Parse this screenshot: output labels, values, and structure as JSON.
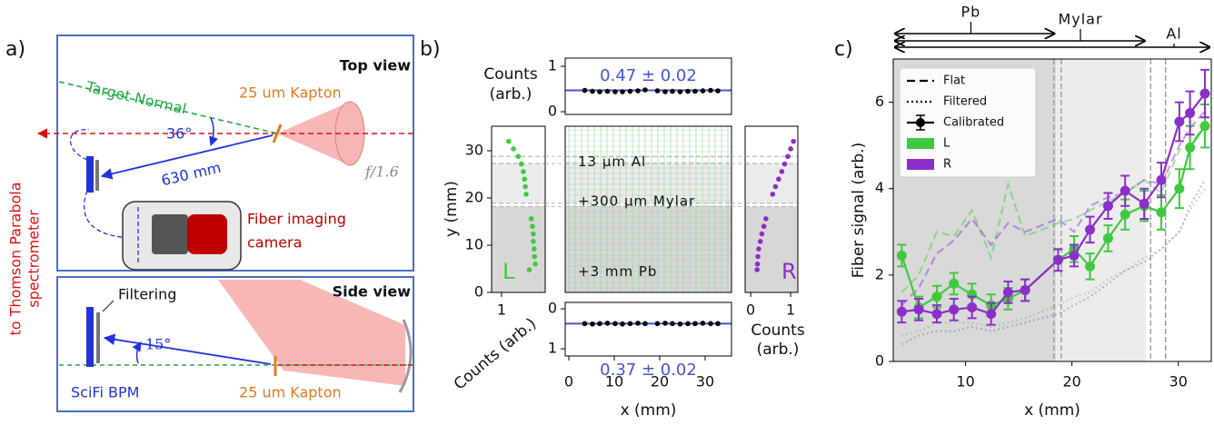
{
  "panel_a": {
    "label": "a)",
    "top_view": {
      "title": "Top view",
      "target_normal": "Target Normal",
      "kapton": "25 um Kapton",
      "angle": "36°",
      "distance": "630 mm",
      "f_number": "f/1.6",
      "camera": [
        "Fiber imaging",
        "camera"
      ],
      "spectrometer": [
        "to Thomson Parabola",
        "spectrometer"
      ]
    },
    "side_view": {
      "title": "Side view",
      "filtering": "Filtering",
      "angle": "15°",
      "detector": "SciFi BPM",
      "kapton": "25 um Kapton"
    }
  },
  "chart_data": [
    {
      "type": "scatter",
      "ylabel": [
        "Counts",
        "(arb.)"
      ],
      "color": "#000000",
      "mean_color": "#4455cc",
      "x": [
        3.5,
        5.2,
        6.8,
        8.5,
        10.2,
        11.8,
        13.5,
        15.2,
        16.8,
        19.5,
        21.2,
        22.8,
        24.5,
        26.2,
        27.8,
        29.5,
        31.2,
        32.8
      ],
      "values": [
        0.47,
        0.45,
        0.44,
        0.45,
        0.44,
        0.44,
        0.45,
        0.46,
        0.48,
        0.46,
        0.44,
        0.45,
        0.44,
        0.45,
        0.45,
        0.46,
        0.47,
        0.46
      ],
      "mean": 0.47,
      "annotation": "0.47 ± 0.02",
      "xlim": [
        -0.8,
        35.8
      ],
      "ylim": [
        -0.06,
        1.18
      ],
      "yticks": [
        0,
        1
      ]
    },
    {
      "type": "image",
      "label": "b)",
      "layers": [
        "13 μm Al",
        "+300 μm Mylar",
        "+3 mm Pb"
      ],
      "boundaries": [
        28.8,
        27.3,
        18.9,
        18.2
      ],
      "xlim": [
        -0.8,
        35.8
      ],
      "ylim": [
        0,
        35.2
      ]
    },
    {
      "type": "scatter",
      "name": "L",
      "color": "#3fc93f",
      "ylabel": "y (mm)",
      "xlabel": "Counts (arb.)",
      "y": [
        32,
        30.4,
        28.8,
        27.2,
        25.6,
        24,
        22.4,
        20.8,
        15.6,
        14,
        12.4,
        10.8,
        9.2,
        7.6,
        6,
        4.8
      ],
      "values": [
        0.82,
        0.7,
        0.58,
        0.5,
        0.45,
        0.42,
        0.4,
        0.38,
        0.25,
        0.22,
        0.2,
        0.2,
        0.18,
        0.17,
        0.15,
        0.3
      ],
      "xlim": [
        1.25,
        -0.1
      ],
      "xticks": [
        1
      ],
      "ylim": [
        0,
        35.2
      ],
      "yticks": [
        0,
        10,
        20,
        30
      ]
    },
    {
      "type": "scatter",
      "name": "R",
      "color": "#8b2fc9",
      "xlabel": [
        "Counts",
        "(arb.)"
      ],
      "y": [
        32,
        30.4,
        28.8,
        27.2,
        25.6,
        24,
        22.4,
        20.8,
        15.6,
        14,
        12.4,
        10.8,
        9.2,
        7.6,
        6,
        4.8
      ],
      "values": [
        1.07,
        1.0,
        0.93,
        0.85,
        0.78,
        0.7,
        0.62,
        0.55,
        0.38,
        0.33,
        0.28,
        0.24,
        0.2,
        0.18,
        0.17,
        0.16
      ],
      "xlim": [
        -0.14,
        1.18
      ],
      "xticks": [
        0,
        1
      ],
      "ylim": [
        0,
        35.2
      ]
    },
    {
      "type": "scatter",
      "color": "#000000",
      "mean_color": "#4455cc",
      "xlabel": "x (mm)",
      "x": [
        3.5,
        5.2,
        6.8,
        8.5,
        10.2,
        11.8,
        13.5,
        15.2,
        16.8,
        19.5,
        21.2,
        22.8,
        24.5,
        26.2,
        27.8,
        29.5,
        31.2,
        32.8
      ],
      "values": [
        0.37,
        0.38,
        0.37,
        0.36,
        0.37,
        0.38,
        0.37,
        0.36,
        0.37,
        0.37,
        0.36,
        0.37,
        0.38,
        0.37,
        0.37,
        0.36,
        0.37,
        0.37
      ],
      "mean": 0.37,
      "annotation": "0.37 ± 0.02",
      "xlim": [
        -0.8,
        35.8
      ],
      "xticks": [
        0,
        10,
        20,
        30
      ],
      "ylim": [
        1.18,
        -0.16
      ],
      "yticks": [
        0,
        1
      ]
    },
    {
      "type": "line",
      "label": "c)",
      "xlabel": "x (mm)",
      "ylabel": "Fiber signal (arb.)",
      "line_styles": [
        "Flat",
        "Filtered",
        "Calibrated"
      ],
      "x": [
        4.0,
        5.6,
        7.3,
        8.9,
        10.6,
        12.4,
        14.0,
        15.6,
        18.7,
        20.2,
        21.7,
        23.4,
        25.0,
        26.8,
        28.4,
        30.1,
        31.1,
        32.5
      ],
      "series": [
        {
          "name": "L",
          "color": "#3fc93f",
          "values": [
            2.45,
            1.25,
            1.5,
            1.8,
            1.55,
            1.3,
            1.45,
            1.65,
            2.35,
            2.6,
            2.2,
            2.85,
            3.4,
            3.6,
            3.45,
            4.0,
            4.95,
            5.45
          ],
          "errors": [
            0.25,
            0.25,
            0.25,
            0.25,
            0.25,
            0.25,
            0.25,
            0.25,
            0.25,
            0.3,
            0.3,
            0.3,
            0.35,
            0.35,
            0.4,
            0.45,
            0.5,
            0.5
          ],
          "flat": [
            1.6,
            2.0,
            3.0,
            2.9,
            3.5,
            2.4,
            4.1,
            2.9,
            3.2,
            3.3,
            3.5,
            3.7,
            3.9,
            4.2,
            3.9,
            4.9,
            5.0,
            5.5
          ],
          "filtered": [
            0.6,
            0.7,
            0.9,
            0.9,
            0.9,
            0.8,
            0.9,
            1.0,
            1.3,
            1.5,
            1.6,
            1.9,
            2.1,
            2.4,
            2.6,
            3.0,
            3.5,
            4.0
          ]
        },
        {
          "name": "R",
          "color": "#8b2fc9",
          "values": [
            1.15,
            1.2,
            1.1,
            1.2,
            1.25,
            1.1,
            1.6,
            1.65,
            2.35,
            2.45,
            3.05,
            3.6,
            3.95,
            3.65,
            4.2,
            5.55,
            5.75,
            6.2
          ],
          "errors": [
            0.25,
            0.25,
            0.2,
            0.25,
            0.25,
            0.25,
            0.25,
            0.25,
            0.25,
            0.25,
            0.3,
            0.3,
            0.35,
            0.35,
            0.4,
            0.45,
            0.5,
            0.55
          ],
          "flat": [
            1.3,
            1.7,
            2.5,
            2.8,
            3.3,
            2.7,
            3.2,
            3.0,
            3.3,
            3.0,
            3.6,
            3.8,
            3.9,
            4.2,
            4.1,
            5.0,
            5.4,
            5.8
          ],
          "filtered": [
            0.4,
            0.6,
            0.7,
            0.7,
            0.8,
            0.7,
            0.8,
            0.9,
            1.1,
            1.3,
            1.5,
            1.8,
            2.1,
            2.3,
            2.6,
            3.0,
            3.6,
            4.2
          ]
        }
      ],
      "layers": [
        {
          "label": "Pb",
          "end": 18.5,
          "tick": 10.5
        },
        {
          "label": "Mylar",
          "end": 27.0,
          "tick": 20.8
        },
        {
          "label": "Al",
          "end": 33.1,
          "tick": 29.6
        }
      ],
      "vlines": [
        18.3,
        19.0,
        27.4,
        28.8
      ],
      "xlim": [
        3.2,
        33.1
      ],
      "ylim": [
        0,
        7
      ],
      "xticks": [
        10,
        20,
        30
      ],
      "yticks": [
        0,
        2,
        4,
        6
      ]
    }
  ]
}
